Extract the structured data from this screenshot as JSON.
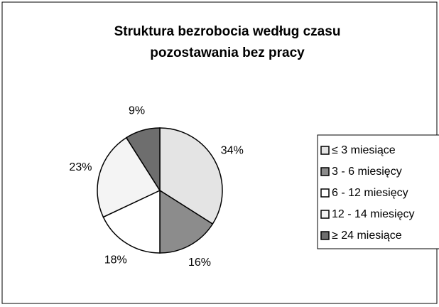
{
  "chart_data": {
    "type": "pie",
    "title": [
      "Struktura bezrobocia według czasu",
      "pozostawania bez pracy"
    ],
    "categories": [
      "≤  3 miesiące",
      "3 - 6 miesięcy",
      "6 - 12 miesięcy",
      "12 - 14 miesięcy",
      "≥ 24 miesiące"
    ],
    "values": [
      34,
      16,
      18,
      23,
      9
    ],
    "value_labels": [
      "34%",
      "16%",
      "18%",
      "23%",
      "9%"
    ],
    "colors": [
      "#e4e4e4",
      "#8c8c8c",
      "#ffffff",
      "#f4f4f4",
      "#6e6e6e"
    ]
  }
}
